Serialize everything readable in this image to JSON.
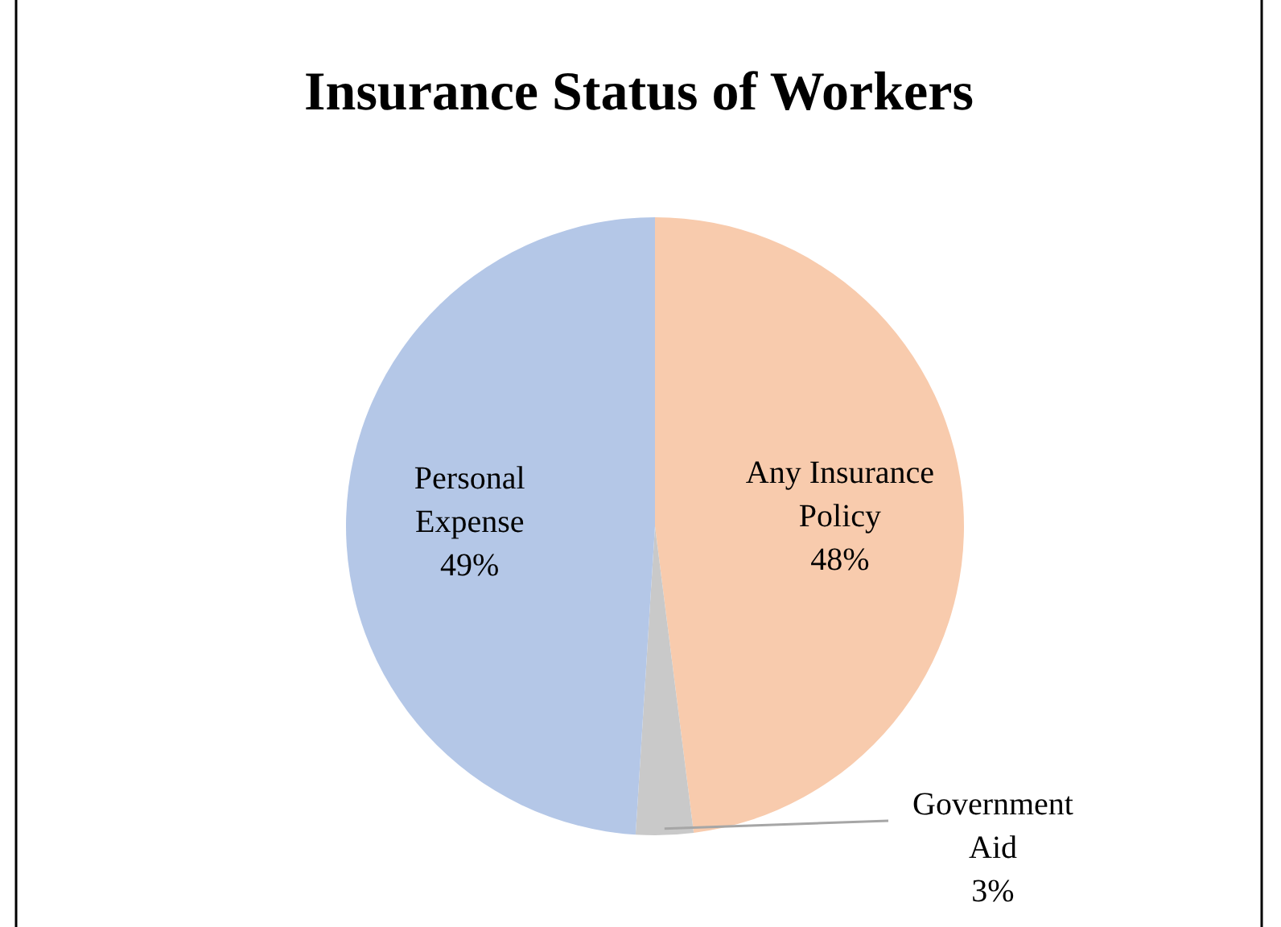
{
  "chart_data": {
    "type": "pie",
    "title": "Insurance Status of Workers",
    "categories": [
      "Any Insurance Policy",
      "Government Aid",
      "Personal Expense"
    ],
    "values": [
      48,
      3,
      49
    ],
    "colors": [
      "#f8cbad",
      "#c9c9c9",
      "#b4c7e7"
    ],
    "value_labels": [
      "48%",
      "3%",
      "49%"
    ]
  }
}
